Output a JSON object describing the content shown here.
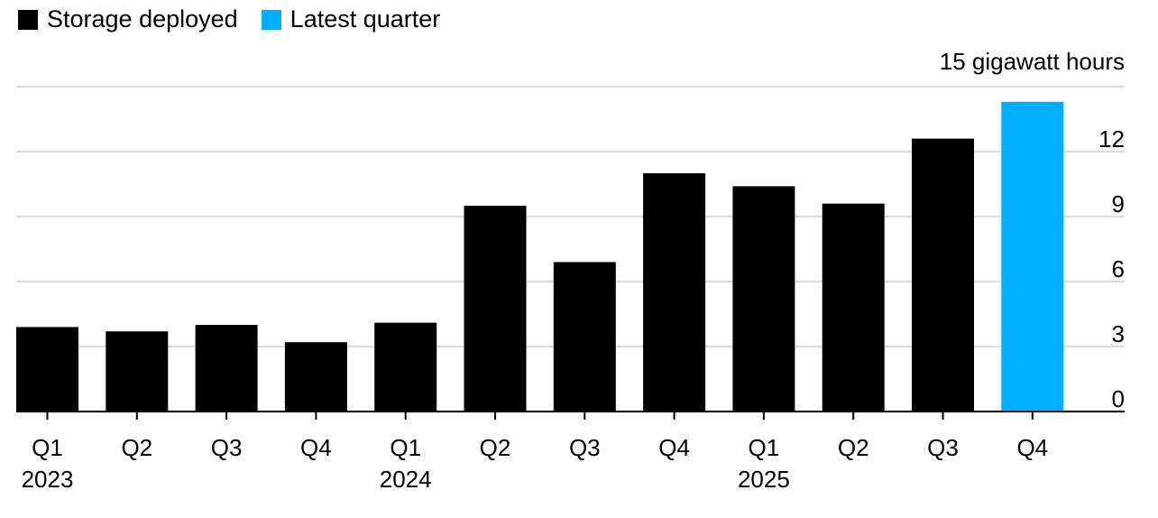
{
  "legend": [
    {
      "label": "Storage deployed",
      "color": "#000000"
    },
    {
      "label": "Latest quarter",
      "color": "#00adff"
    }
  ],
  "chart_data": {
    "type": "bar",
    "unit_label": "15 gigawatt hours",
    "categories": [
      "Q1",
      "Q2",
      "Q3",
      "Q4",
      "Q1",
      "Q2",
      "Q3",
      "Q4",
      "Q1",
      "Q2",
      "Q3",
      "Q4"
    ],
    "years": [
      {
        "label": "2023",
        "index": 0
      },
      {
        "label": "2024",
        "index": 4
      },
      {
        "label": "2025",
        "index": 8
      }
    ],
    "series": [
      {
        "name": "Storage deployed",
        "values": [
          3.9,
          3.7,
          4.0,
          3.2,
          4.1,
          9.5,
          6.9,
          11.0,
          10.4,
          9.6,
          12.6,
          14.3
        ]
      }
    ],
    "highlight_index": 11,
    "ylim": [
      0,
      15
    ],
    "yticks": [
      0,
      3,
      6,
      9,
      12
    ],
    "gridlines": [
      3,
      6,
      9,
      12,
      15
    ],
    "colors": {
      "bar": "#000000",
      "highlight": "#00adff",
      "grid": "#d9d9d9",
      "axis": "#000000"
    }
  }
}
